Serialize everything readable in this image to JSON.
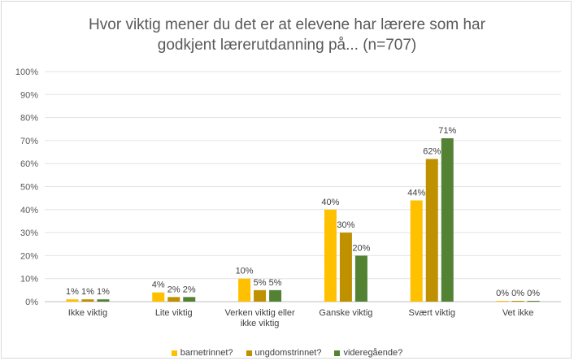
{
  "chart_data": {
    "type": "bar",
    "title_lines": [
      "Hvor viktig mener du det er at elevene har lærere som har",
      "godkjent lærerutdanning på... (n=707)"
    ],
    "categories": [
      [
        "Ikke viktig"
      ],
      [
        "Lite viktig"
      ],
      [
        "Verken viktig eller",
        "ikke viktig"
      ],
      [
        "Ganske viktig"
      ],
      [
        "Svært viktig"
      ],
      [
        "Vet ikke"
      ]
    ],
    "series": [
      {
        "name": "barnetrinnet?",
        "color": "#ffc000",
        "values": [
          1,
          4,
          10,
          40,
          44,
          0
        ]
      },
      {
        "name": "ungdomstrinnet?",
        "color": "#bf9000",
        "values": [
          1,
          2,
          5,
          30,
          62,
          0
        ]
      },
      {
        "name": "videregående?",
        "color": "#548235",
        "values": [
          1,
          2,
          5,
          20,
          71,
          0
        ]
      }
    ],
    "ylim": [
      0,
      100
    ],
    "yticks": [
      "0%",
      "10%",
      "20%",
      "30%",
      "40%",
      "50%",
      "60%",
      "70%",
      "80%",
      "90%",
      "100%"
    ],
    "value_suffix": "%",
    "grid": true,
    "legend_position": "bottom"
  }
}
